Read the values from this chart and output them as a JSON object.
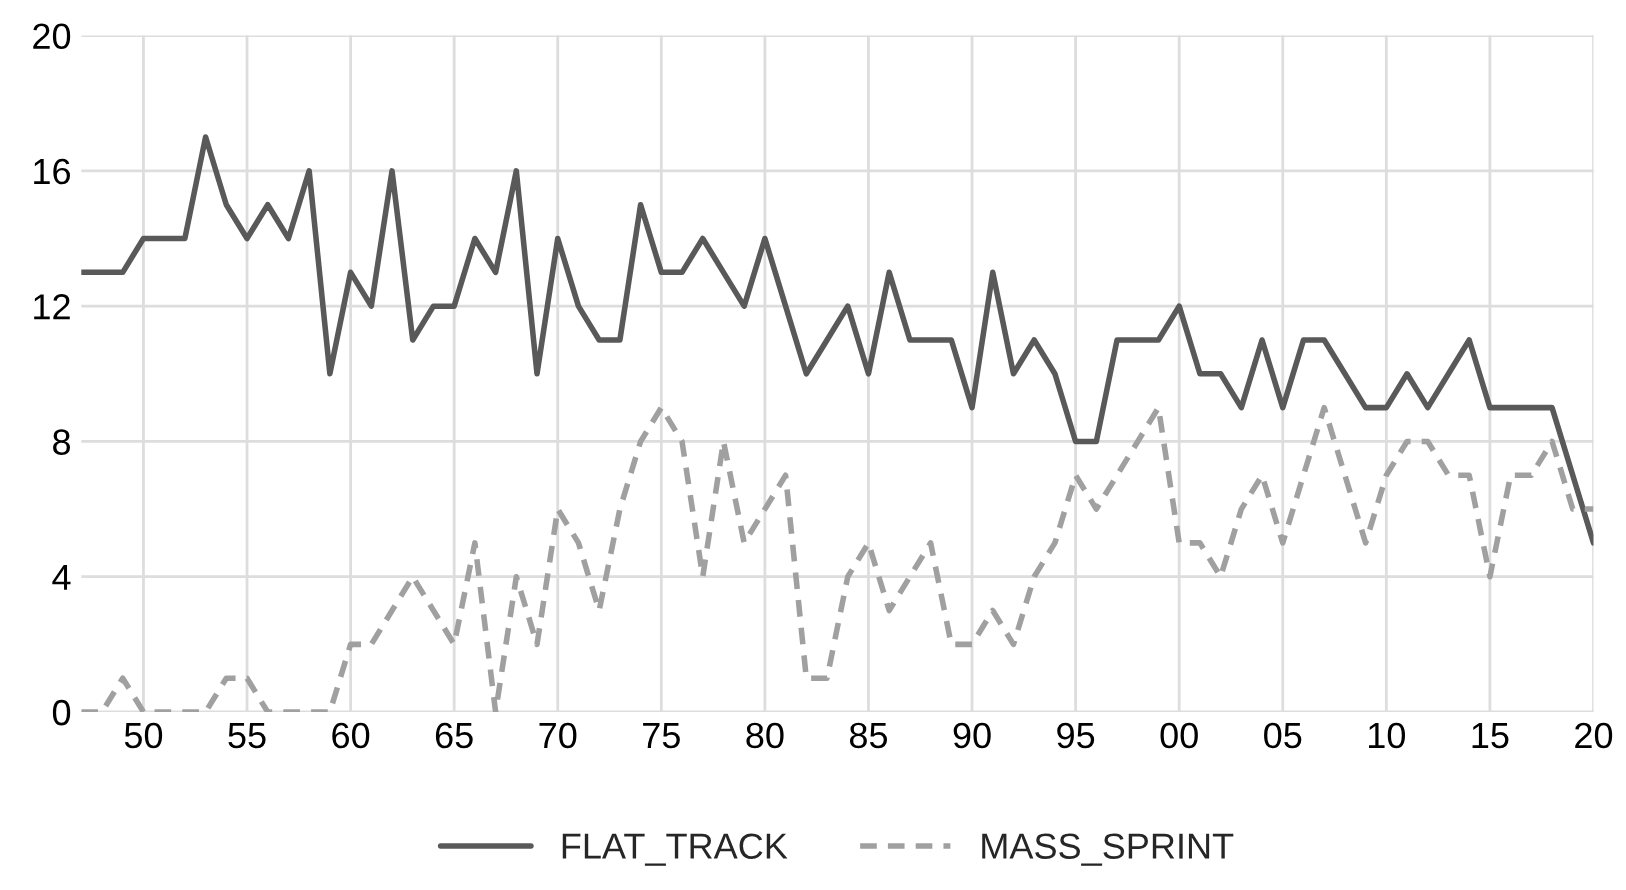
{
  "chart_data": {
    "type": "line",
    "x": [
      1947,
      1948,
      1949,
      1950,
      1951,
      1952,
      1953,
      1954,
      1955,
      1956,
      1957,
      1958,
      1959,
      1960,
      1961,
      1962,
      1963,
      1964,
      1965,
      1966,
      1967,
      1968,
      1969,
      1970,
      1971,
      1972,
      1973,
      1974,
      1975,
      1976,
      1977,
      1978,
      1979,
      1980,
      1981,
      1982,
      1983,
      1984,
      1985,
      1986,
      1987,
      1988,
      1989,
      1990,
      1991,
      1992,
      1993,
      1994,
      1995,
      1996,
      1997,
      1998,
      1999,
      2000,
      2001,
      2002,
      2003,
      2004,
      2005,
      2006,
      2007,
      2008,
      2009,
      2010,
      2011,
      2012,
      2013,
      2014,
      2015,
      2016,
      2017,
      2018,
      2019,
      2020
    ],
    "series": [
      {
        "name": "FLAT_TRACK",
        "color": "#595959",
        "line_style": "solid",
        "values": [
          13,
          13,
          13,
          14,
          14,
          14,
          17,
          15,
          14,
          15,
          14,
          16,
          10,
          13,
          12,
          16,
          11,
          12,
          12,
          14,
          13,
          16,
          10,
          14,
          12,
          11,
          11,
          15,
          13,
          13,
          14,
          13,
          12,
          14,
          12,
          10,
          11,
          12,
          10,
          13,
          11,
          11,
          11,
          9,
          13,
          10,
          11,
          10,
          8,
          8,
          11,
          11,
          11,
          12,
          10,
          10,
          9,
          11,
          9,
          11,
          11,
          10,
          9,
          9,
          10,
          9,
          10,
          11,
          9,
          9,
          9,
          9,
          7,
          5
        ]
      },
      {
        "name": "MASS_SPRINT",
        "color": "#a0a0a0",
        "line_style": "dashed",
        "values": [
          0,
          0,
          1,
          0,
          0,
          0,
          0,
          1,
          1,
          0,
          0,
          0,
          0,
          2,
          2,
          3,
          4,
          3,
          2,
          5,
          0,
          4,
          2,
          6,
          5,
          3,
          6,
          8,
          9,
          8,
          4,
          8,
          5,
          6,
          7,
          1,
          1,
          4,
          5,
          3,
          4,
          5,
          2,
          2,
          3,
          2,
          4,
          5,
          7,
          6,
          7,
          8,
          9,
          5,
          5,
          4,
          6,
          7,
          5,
          7,
          9,
          7,
          5,
          7,
          8,
          8,
          7,
          7,
          4,
          7,
          7,
          8,
          6,
          6
        ]
      }
    ],
    "xlim": [
      1947,
      2020
    ],
    "xticks": [
      {
        "value": 1950,
        "label": "50"
      },
      {
        "value": 1955,
        "label": "55"
      },
      {
        "value": 1960,
        "label": "60"
      },
      {
        "value": 1965,
        "label": "65"
      },
      {
        "value": 1970,
        "label": "70"
      },
      {
        "value": 1975,
        "label": "75"
      },
      {
        "value": 1980,
        "label": "80"
      },
      {
        "value": 1985,
        "label": "85"
      },
      {
        "value": 1990,
        "label": "90"
      },
      {
        "value": 1995,
        "label": "95"
      },
      {
        "value": 2000,
        "label": "00"
      },
      {
        "value": 2005,
        "label": "05"
      },
      {
        "value": 2010,
        "label": "10"
      },
      {
        "value": 2015,
        "label": "15"
      },
      {
        "value": 2020,
        "label": "20"
      }
    ],
    "ylim": [
      0,
      20
    ],
    "yticks": [
      0,
      4,
      8,
      12,
      16,
      20
    ],
    "grid": true,
    "legend": "bottom"
  }
}
